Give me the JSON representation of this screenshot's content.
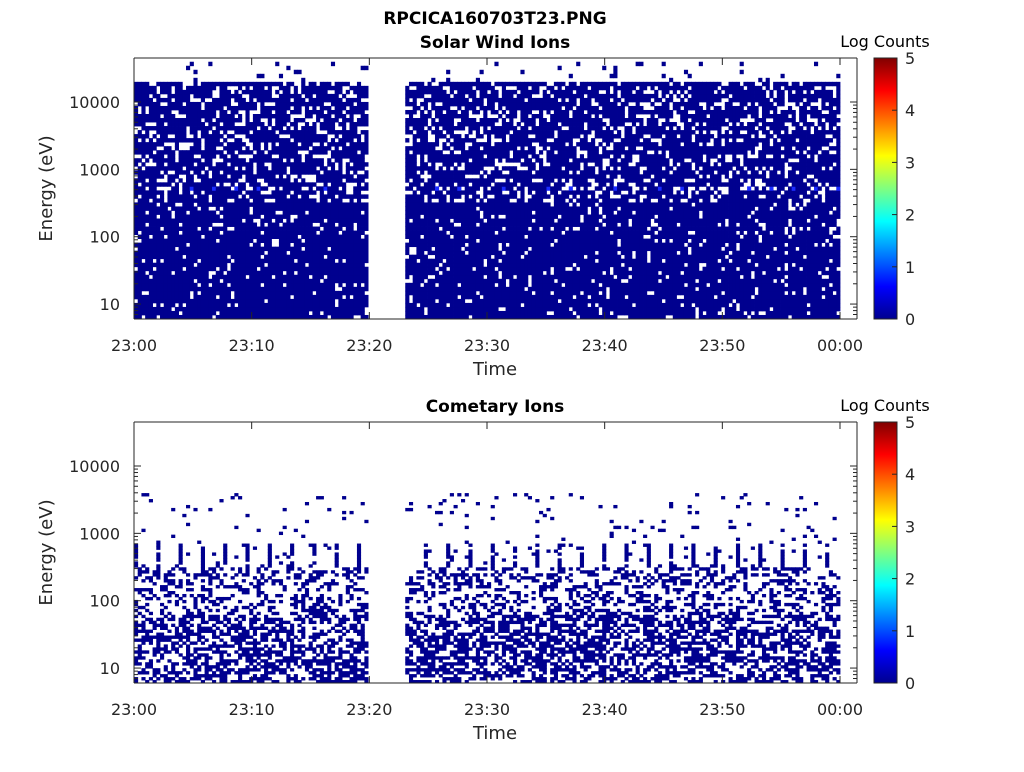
{
  "figure": {
    "title": "RPCICA160703T23.PNG"
  },
  "chart_data": [
    {
      "type": "heatmap",
      "title": "Solar Wind Ions",
      "xlabel": "Time",
      "ylabel": "Energy (eV)",
      "y_scale": "log",
      "ylim": [
        6,
        45000
      ],
      "x_ticks": [
        "23:00",
        "23:10",
        "23:20",
        "23:30",
        "23:40",
        "23:50",
        "00:00"
      ],
      "y_ticks": [
        {
          "value": 10,
          "label": "10"
        },
        {
          "value": 100,
          "label": "100"
        },
        {
          "value": 1000,
          "label": "1000"
        },
        {
          "value": 10000,
          "label": "10000"
        }
      ],
      "colorbar": {
        "label": "Log Counts",
        "range": [
          0,
          5
        ],
        "ticks": [
          "0",
          "1",
          "2",
          "3",
          "4",
          "5"
        ],
        "colormap": "jet"
      },
      "data_gap": [
        "23:20",
        "23:23"
      ],
      "bands": {
        "dense_low_energy_fraction": 0.9,
        "dense_mid_energy_fraction": 0.88,
        "dense_high_energy_fraction": 0.75,
        "peak_energy_eV": 520,
        "peak_log_counts": 1,
        "background_log_counts": 0
      },
      "max_energy_eV": 18000
    },
    {
      "type": "heatmap",
      "title": "Cometary Ions",
      "xlabel": "Time",
      "ylabel": "Energy (eV)",
      "y_scale": "log",
      "ylim": [
        6,
        45000
      ],
      "x_ticks": [
        "23:00",
        "23:10",
        "23:20",
        "23:30",
        "23:40",
        "23:50",
        "00:00"
      ],
      "y_ticks": [
        {
          "value": 10,
          "label": "10"
        },
        {
          "value": 100,
          "label": "100"
        },
        {
          "value": 1000,
          "label": "1000"
        },
        {
          "value": 10000,
          "label": "10000"
        }
      ],
      "colorbar": {
        "label": "Log Counts",
        "range": [
          0,
          5
        ],
        "ticks": [
          "0",
          "1",
          "2",
          "3",
          "4",
          "5"
        ],
        "colormap": "jet"
      },
      "data_gap": [
        "23:20",
        "23:23"
      ],
      "bands": {
        "dense_low_energy_fraction": 0.55,
        "dense_mid_energy_fraction": 0.35,
        "sparse_high_energy_fraction": 0.04,
        "peak_energy_eV": 520,
        "peak_log_counts": 0,
        "background_log_counts": 0
      },
      "max_energy_eV": 1800
    }
  ]
}
